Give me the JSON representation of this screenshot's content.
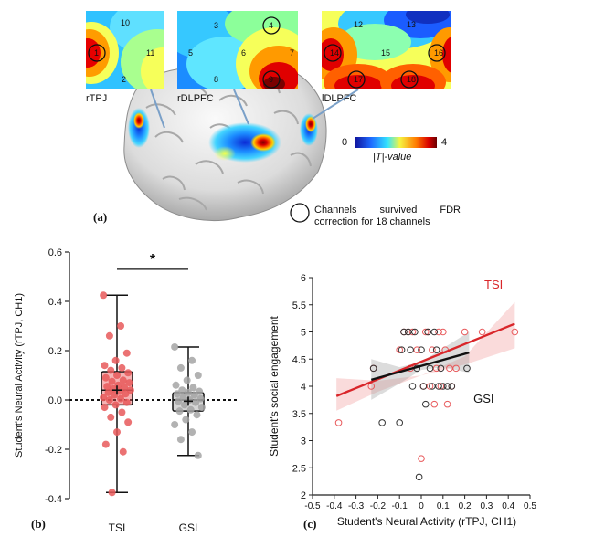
{
  "panel_a": {
    "maps": [
      {
        "label": "rTPJ",
        "channels": [
          "10",
          "1",
          "11",
          "2"
        ],
        "circled": [
          "1"
        ]
      },
      {
        "label": "rDLPFC",
        "channels": [
          "3",
          "4",
          "5",
          "6",
          "7",
          "8",
          "9"
        ],
        "circled": [
          "4",
          "9"
        ]
      },
      {
        "label": "lDLPFC",
        "channels": [
          "12",
          "13",
          "14",
          "15",
          "16",
          "17",
          "18"
        ],
        "circled": [
          "14",
          "16",
          "17",
          "18"
        ]
      }
    ],
    "colorbar": {
      "min": "0",
      "max": "4",
      "label": "|T|-value"
    },
    "legend": {
      "line1": "Channels survived FDR",
      "line2": "correction for 18 channels"
    },
    "letter": "(a)"
  },
  "panel_b": {
    "letter": "(b)",
    "significance": "*",
    "chart_data": {
      "type": "box",
      "title": "",
      "ylabel": "Student's Neural Activity (rTPJ, CH1)",
      "categories": [
        "TSI",
        "GSI"
      ],
      "yticks": [
        "-0.4",
        "-0.2",
        "0.0",
        "0.2",
        "0.4",
        "0.6"
      ],
      "ylim": [
        -0.4,
        0.6
      ],
      "boxes": [
        {
          "name": "TSI",
          "min": -0.375,
          "q1": -0.02,
          "median": 0.04,
          "mean": 0.04,
          "q3": 0.115,
          "max": 0.425,
          "color": "#e8595b"
        },
        {
          "name": "GSI",
          "min": -0.225,
          "q1": -0.045,
          "median": 0.0,
          "mean": -0.005,
          "q3": 0.03,
          "max": 0.215,
          "color": "#a5a5a5"
        }
      ],
      "points": {
        "TSI": [
          0.425,
          0.3,
          0.26,
          0.19,
          0.16,
          0.14,
          0.13,
          0.12,
          0.11,
          0.1,
          0.09,
          0.08,
          0.075,
          0.07,
          0.06,
          0.055,
          0.05,
          0.045,
          0.04,
          0.035,
          0.03,
          0.025,
          0.02,
          0.01,
          0.005,
          0.0,
          -0.01,
          -0.02,
          -0.03,
          -0.05,
          -0.07,
          -0.09,
          -0.13,
          -0.18,
          -0.21,
          -0.375
        ],
        "GSI": [
          0.215,
          0.16,
          0.13,
          0.1,
          0.08,
          0.06,
          0.05,
          0.04,
          0.035,
          0.03,
          0.025,
          0.02,
          0.01,
          0.005,
          0.0,
          -0.005,
          -0.01,
          -0.02,
          -0.03,
          -0.04,
          -0.045,
          -0.06,
          -0.08,
          -0.1,
          -0.13,
          -0.16,
          -0.225
        ]
      },
      "reference_line": 0.0
    }
  },
  "panel_c": {
    "letter": "(c)",
    "chart_data": {
      "type": "scatter",
      "xlabel": "Student's Neural Activity (rTPJ, CH1)",
      "ylabel": "Student's social engagement",
      "xlim": [
        -0.5,
        0.5
      ],
      "ylim": [
        2,
        6
      ],
      "xticks": [
        "-0.5",
        "-0.4",
        "-0.3",
        "-0.2",
        "-0.1",
        "0",
        "0.1",
        "0.2",
        "0.3",
        "0.4",
        "0.5"
      ],
      "yticks": [
        "2",
        "2.5",
        "3",
        "3.5",
        "4",
        "4.5",
        "5",
        "5.5",
        "6"
      ],
      "series": [
        {
          "name": "TSI",
          "color": "#e8595b",
          "fit": {
            "x0": -0.39,
            "y0": 3.82,
            "x1": 0.43,
            "y1": 5.15
          },
          "points": [
            [
              -0.38,
              3.33
            ],
            [
              -0.23,
              4.0
            ],
            [
              -0.22,
              4.33
            ],
            [
              -0.1,
              4.67
            ],
            [
              -0.08,
              5.0
            ],
            [
              -0.06,
              5.0
            ],
            [
              -0.05,
              4.33
            ],
            [
              -0.04,
              5.0
            ],
            [
              -0.02,
              4.67
            ],
            [
              0.0,
              2.67
            ],
            [
              0.01,
              4.0
            ],
            [
              0.02,
              5.0
            ],
            [
              0.03,
              5.0
            ],
            [
              0.04,
              4.0
            ],
            [
              0.05,
              4.67
            ],
            [
              0.06,
              3.67
            ],
            [
              0.07,
              4.33
            ],
            [
              0.08,
              5.0
            ],
            [
              0.09,
              4.0
            ],
            [
              0.1,
              5.0
            ],
            [
              0.11,
              4.67
            ],
            [
              0.12,
              3.67
            ],
            [
              0.13,
              4.33
            ],
            [
              0.14,
              4.0
            ],
            [
              0.16,
              4.33
            ],
            [
              0.2,
              5.0
            ],
            [
              0.28,
              5.0
            ],
            [
              0.43,
              5.0
            ]
          ]
        },
        {
          "name": "GSI",
          "color": "#333333",
          "fit": {
            "x0": -0.23,
            "y0": 4.12,
            "x1": 0.22,
            "y1": 4.62
          },
          "points": [
            [
              -0.22,
              4.33
            ],
            [
              -0.18,
              3.33
            ],
            [
              -0.1,
              3.33
            ],
            [
              -0.09,
              4.67
            ],
            [
              -0.08,
              5.0
            ],
            [
              -0.06,
              5.0
            ],
            [
              -0.05,
              4.67
            ],
            [
              -0.04,
              4.0
            ],
            [
              -0.03,
              5.0
            ],
            [
              -0.02,
              4.33
            ],
            [
              -0.01,
              2.33
            ],
            [
              0.0,
              4.67
            ],
            [
              0.01,
              4.0
            ],
            [
              0.02,
              3.67
            ],
            [
              0.03,
              5.0
            ],
            [
              0.04,
              4.33
            ],
            [
              0.05,
              4.0
            ],
            [
              0.06,
              5.0
            ],
            [
              0.07,
              4.67
            ],
            [
              0.08,
              4.0
            ],
            [
              0.09,
              4.33
            ],
            [
              0.1,
              4.0
            ],
            [
              0.12,
              4.0
            ],
            [
              0.14,
              4.0
            ],
            [
              0.21,
              4.33
            ]
          ]
        }
      ]
    }
  },
  "colors": {
    "tsi": "#e8595b",
    "gsi": "#a5a5a5",
    "axis": "#222222"
  }
}
